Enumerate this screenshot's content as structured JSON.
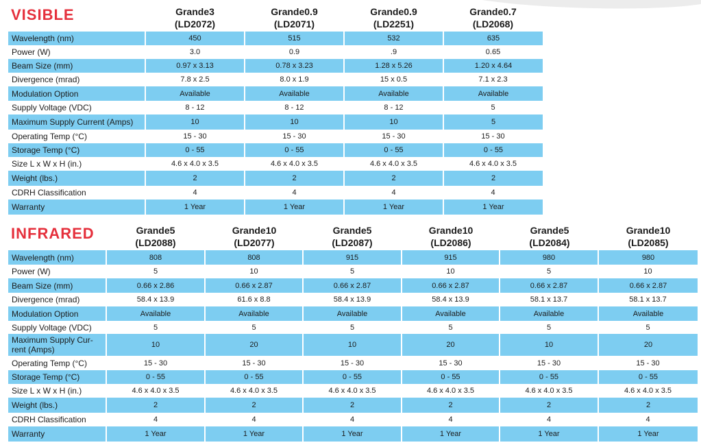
{
  "visible": {
    "title": "VISIBLE",
    "models": [
      {
        "name": "Grande3",
        "id": "(LD2072)"
      },
      {
        "name": "Grande0.9",
        "id": "(LD2071)"
      },
      {
        "name": "Grande0.9",
        "id": "(LD2251)"
      },
      {
        "name": "Grande0.7",
        "id": "(LD2068)"
      }
    ],
    "rows": [
      {
        "label": "Wavelength (nm)",
        "values": [
          "450",
          "515",
          "532",
          "635"
        ]
      },
      {
        "label": "Power (W)",
        "values": [
          "3.0",
          "0.9",
          ".9",
          "0.65"
        ]
      },
      {
        "label": "Beam Size (mm)",
        "values": [
          "0.97 x 3.13",
          "0.78 x 3.23",
          "1.28 x 5.26",
          "1.20 x 4.64"
        ]
      },
      {
        "label": "Divergence (mrad)",
        "values": [
          "7.8 x 2.5",
          "8.0 x 1.9",
          "15 x 0.5",
          "7.1 x 2.3"
        ]
      },
      {
        "label": "Modulation Option",
        "values": [
          "Available",
          "Available",
          "Available",
          "Available"
        ]
      },
      {
        "label": "Supply Voltage (VDC)",
        "values": [
          "8 - 12",
          "8 - 12",
          "8 - 12",
          "5"
        ]
      },
      {
        "label": "Maximum Supply Current (Amps)",
        "values": [
          "10",
          "10",
          "10",
          "5"
        ]
      },
      {
        "label": "Operating Temp (°C)",
        "values": [
          "15 - 30",
          "15 - 30",
          "15 - 30",
          "15 - 30"
        ]
      },
      {
        "label": "Storage Temp (°C)",
        "values": [
          "0 - 55",
          "0 - 55",
          "0 - 55",
          "0 - 55"
        ]
      },
      {
        "label": "Size L x W x H (in.)",
        "values": [
          "4.6 x 4.0 x 3.5",
          "4.6 x 4.0 x 3.5",
          "4.6 x 4.0 x 3.5",
          "4.6 x 4.0 x 3.5"
        ]
      },
      {
        "label": "Weight (lbs.)",
        "values": [
          "2",
          "2",
          "2",
          "2"
        ]
      },
      {
        "label": "CDRH Classification",
        "values": [
          "4",
          "4",
          "4",
          "4"
        ]
      },
      {
        "label": "Warranty",
        "values": [
          "1 Year",
          "1 Year",
          "1 Year",
          "1 Year"
        ]
      }
    ]
  },
  "infrared": {
    "title": "INFRARED",
    "models": [
      {
        "name": "Grande5",
        "id": "(LD2088)"
      },
      {
        "name": "Grande10",
        "id": "(LD2077)"
      },
      {
        "name": "Grande5",
        "id": "(LD2087)"
      },
      {
        "name": "Grande10",
        "id": "(LD2086)"
      },
      {
        "name": "Grande5",
        "id": "(LD2084)"
      },
      {
        "name": "Grande10",
        "id": "(LD2085)"
      }
    ],
    "rows": [
      {
        "label": "Wavelength (nm)",
        "values": [
          "808",
          "808",
          "915",
          "915",
          "980",
          "980"
        ]
      },
      {
        "label": "Power (W)",
        "values": [
          "5",
          "10",
          "5",
          "10",
          "5",
          "10"
        ]
      },
      {
        "label": "Beam Size (mm)",
        "values": [
          "0.66 x 2.86",
          "0.66 x 2.87",
          "0.66 x 2.87",
          "0.66 x 2.87",
          "0.66 x 2.87",
          "0.66 x 2.87"
        ]
      },
      {
        "label": "Divergence (mrad)",
        "values": [
          "58.4 x 13.9",
          "61.6 x 8.8",
          "58.4 x 13.9",
          "58.4 x 13.9",
          "58.1 x 13.7",
          "58.1 x 13.7"
        ]
      },
      {
        "label": "Modulation Option",
        "values": [
          "Available",
          "Available",
          "Available",
          "Available",
          "Available",
          "Available"
        ]
      },
      {
        "label": "Supply Voltage (VDC)",
        "values": [
          "5",
          "5",
          "5",
          "5",
          "5",
          "5"
        ]
      },
      {
        "label": "Maximum Supply Cur-rent (Amps)",
        "values": [
          "10",
          "20",
          "10",
          "20",
          "10",
          "20"
        ]
      },
      {
        "label": "Operating Temp (°C)",
        "values": [
          "15 - 30",
          "15 - 30",
          "15 - 30",
          "15 - 30",
          "15 - 30",
          "15 - 30"
        ]
      },
      {
        "label": "Storage Temp (°C)",
        "values": [
          "0 - 55",
          "0 - 55",
          "0 - 55",
          "0 - 55",
          "0 - 55",
          "0 - 55"
        ]
      },
      {
        "label": "Size L x W x H (in.)",
        "values": [
          "4.6 x 4.0 x 3.5",
          "4.6 x 4.0 x 3.5",
          "4.6 x 4.0 x 3.5",
          "4.6 x 4.0 x 3.5",
          "4.6 x 4.0 x 3.5",
          "4.6 x 4.0 x 3.5"
        ]
      },
      {
        "label": "Weight (lbs.)",
        "values": [
          "2",
          "2",
          "2",
          "2",
          "2",
          "2"
        ]
      },
      {
        "label": "CDRH Classification",
        "values": [
          "4",
          "4",
          "4",
          "4",
          "4",
          "4"
        ]
      },
      {
        "label": "Warranty",
        "values": [
          "1 Year",
          "1 Year",
          "1 Year",
          "1 Year",
          "1 Year",
          "1 Year"
        ]
      }
    ]
  },
  "colors": {
    "title_red": "#e5303c",
    "row_blue": "#7dcdf1"
  }
}
